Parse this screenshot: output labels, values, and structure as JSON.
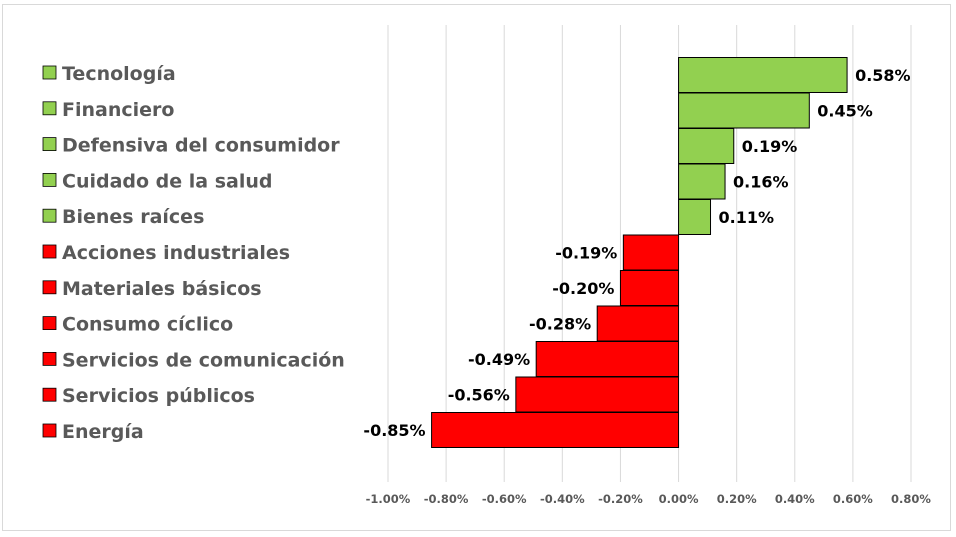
{
  "chart_data": {
    "type": "bar",
    "orientation": "horizontal",
    "categories": [
      "Tecnología",
      "Financiero",
      "Defensiva del consumidor",
      "Cuidado de la salud",
      "Bienes raíces",
      "Acciones industriales",
      "Materiales básicos",
      "Consumo cíclico",
      "Servicios de comunicación",
      "Servicios públicos",
      "Energía"
    ],
    "values": [
      0.58,
      0.45,
      0.19,
      0.16,
      0.11,
      -0.19,
      -0.2,
      -0.28,
      -0.49,
      -0.56,
      -0.85
    ],
    "data_labels": [
      "0.58%",
      "0.45%",
      "0.19%",
      "0.16%",
      "0.11%",
      "-0.19%",
      "-0.20%",
      "-0.28%",
      "-0.49%",
      "-0.56%",
      "-0.85%"
    ],
    "xlim": [
      -1.0,
      0.8
    ],
    "ticks": [
      -1.0,
      -0.8,
      -0.6,
      -0.4,
      -0.2,
      0.0,
      0.2,
      0.4,
      0.6,
      0.8
    ],
    "tick_labels": [
      "-1.00%",
      "-0.80%",
      "-0.60%",
      "-0.40%",
      "-0.20%",
      "0.00%",
      "0.20%",
      "0.40%",
      "0.60%",
      "0.80%"
    ],
    "title": "",
    "xlabel": "",
    "ylabel": "",
    "grid": "vertical",
    "legend": "left",
    "colors": {
      "positive": "#92d050",
      "negative": "#ff0000",
      "bar_border": "#000000",
      "gridline": "#d9d9d9",
      "legend_text": "#595959",
      "tick_text": "#595959"
    }
  }
}
